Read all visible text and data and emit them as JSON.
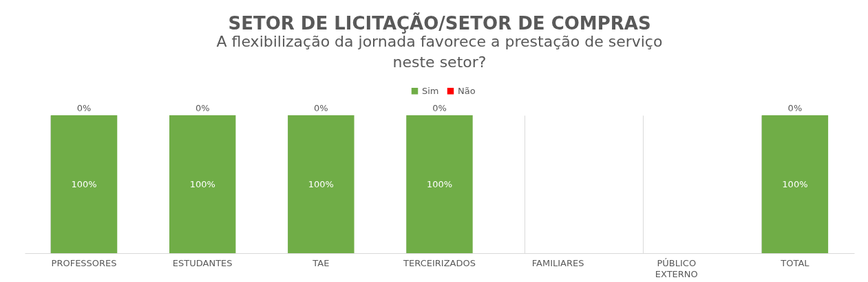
{
  "chart_data": {
    "type": "bar",
    "stacked": true,
    "title": "SETOR DE LICITAÇÃO/SETOR DE COMPRAS",
    "subtitle": "A flexibilização da jornada favorece a prestação de serviço neste setor?",
    "categories": [
      "PROFESSORES",
      "ESTUDANTES",
      "TAE",
      "TERCEIRIZADOS",
      "FAMILIARES",
      "PÚBLICO EXTERNO",
      "TOTAL"
    ],
    "series": [
      {
        "name": "Sim",
        "color": "#70ad47",
        "values": [
          100,
          100,
          100,
          100,
          null,
          null,
          100
        ],
        "value_labels": [
          "100%",
          "100%",
          "100%",
          "100%",
          null,
          null,
          "100%"
        ]
      },
      {
        "name": "Não",
        "color": "#ff0000",
        "values": [
          0,
          0,
          0,
          0,
          null,
          null,
          0
        ],
        "value_labels": [
          "0%",
          "0%",
          "0%",
          "0%",
          null,
          null,
          "0%"
        ]
      }
    ],
    "legend": "top",
    "grid": "x",
    "tick_labels": "x"
  }
}
